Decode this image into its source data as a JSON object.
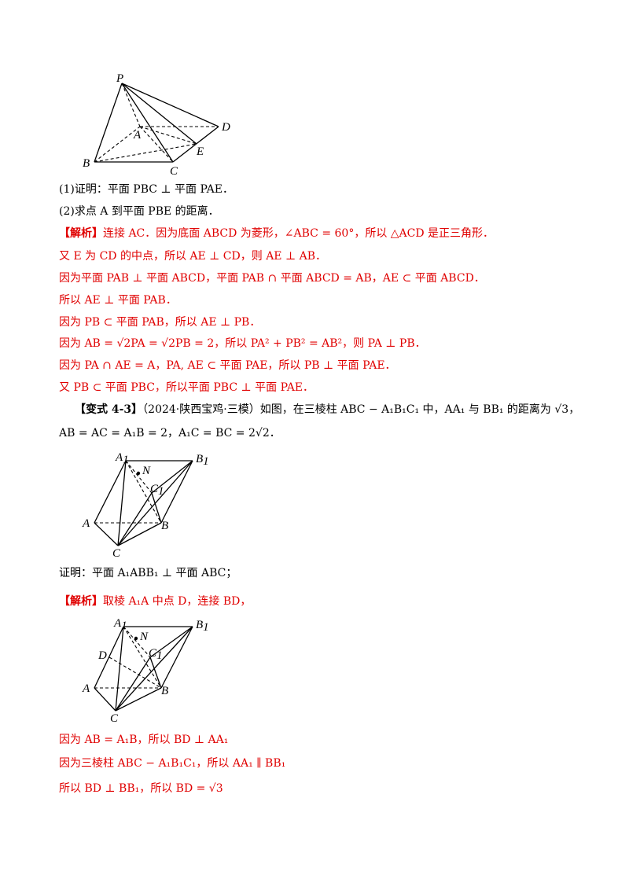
{
  "figure1": {
    "labels": {
      "P": "P",
      "A": "A",
      "B": "B",
      "C": "C",
      "D": "D",
      "E": "E"
    }
  },
  "q1": "(1)证明：平面 PBC ⊥ 平面 PAE．",
  "q2": "(2)求点 A 到平面 PBE 的距离．",
  "sol": {
    "tag": "【解析】",
    "l1": "连接 AC．因为底面 ABCD 为菱形，∠ABC = 60°，所以 △ACD 是正三角形．",
    "l2": "又 E 为 CD 的中点，所以 AE ⊥ CD，则 AE ⊥ AB．",
    "l3": "因为平面 PAB ⊥ 平面 ABCD，平面 PAB ∩ 平面 ABCD = AB，AE ⊂ 平面 ABCD．",
    "l4": "所以 AE ⊥ 平面 PAB．",
    "l5": "因为 PB ⊂ 平面 PAB，所以 AE ⊥ PB．",
    "l6": "因为 AB = √2PA = √2PB = 2，所以 PA² + PB² = AB²，则 PA ⊥ PB．",
    "l7": "因为 PA ∩ AE = A，PA, AE ⊂ 平面 PAE，所以 PB ⊥ 平面 PAE．",
    "l8": "又 PB ⊂ 平面 PBC，所以平面 PBC ⊥ 平面 PAE．"
  },
  "variant": {
    "tag": "【变式 4-3】",
    "source": "（2024·陕西宝鸡·三模）",
    "text": "如图，在三棱柱 ABC − A₁B₁C₁ 中，AA₁ 与 BB₁ 的距离为 √3，",
    "cond": "AB = AC = A₁B = 2，A₁C = BC = 2√2．"
  },
  "figure2": {
    "labels": {
      "A1": "A",
      "B1": "B",
      "C1": "C",
      "N": "N",
      "A": "A",
      "B": "B",
      "C": "C",
      "one": "1"
    }
  },
  "prove": "证明：平面 A₁ABB₁ ⊥ 平面 ABC；",
  "sol2": {
    "tag": "【解析】",
    "l1": "取棱 A₁A 中点 D，连接 BD，"
  },
  "figure3": {
    "labels": {
      "A1": "A",
      "B1": "B",
      "C1": "C",
      "N": "N",
      "D": "D",
      "A": "A",
      "B": "B",
      "C": "C",
      "one": "1"
    }
  },
  "sol3": {
    "l1": "因为 AB = A₁B，所以 BD ⊥ AA₁",
    "l2": "因为三棱柱 ABC − A₁B₁C₁，所以 AA₁ ∥ BB₁",
    "l3": "所以 BD ⊥ BB₁，所以 BD = √3"
  }
}
